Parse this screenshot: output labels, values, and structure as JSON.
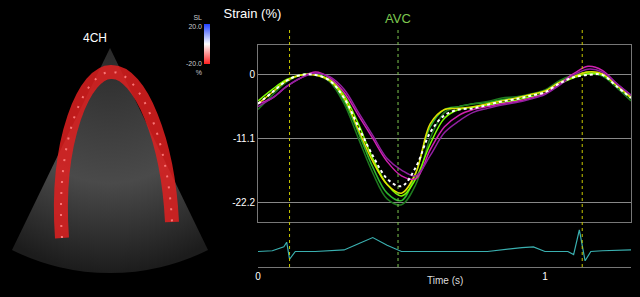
{
  "chart_data": [
    {
      "type": "line",
      "title": "Strain (%)",
      "x": [
        0,
        0.05,
        0.1,
        0.15,
        0.2,
        0.25,
        0.3,
        0.35,
        0.4,
        0.45,
        0.5,
        0.55,
        0.6,
        0.65,
        0.7,
        0.75,
        0.8,
        0.85,
        0.9,
        0.95,
        1.0,
        1.05,
        1.1,
        1.15,
        1.2,
        1.25,
        1.3
      ],
      "xlim": [
        0,
        1.3
      ],
      "ylim": [
        -25.5,
        5.2
      ],
      "yticks": [
        0,
        -11.1,
        -22.2
      ],
      "grid": true,
      "tick_labels": "y",
      "series": [
        {
          "color": "#2eb82e",
          "values": [
            -5,
            -3,
            -1,
            0,
            0.2,
            -1,
            -4.5,
            -10,
            -16,
            -20.5,
            -21.8,
            -17,
            -9,
            -6,
            -5.5,
            -5,
            -4.8,
            -4.3,
            -4,
            -3.5,
            -2.8,
            -1.2,
            -0.2,
            0.5,
            0,
            -2,
            -4
          ]
        },
        {
          "color": "#1f7a1f",
          "values": [
            -6,
            -3.5,
            -1.2,
            0,
            0,
            -1.2,
            -5,
            -11,
            -17,
            -21.5,
            -22.5,
            -19,
            -11,
            -6.5,
            -5.5,
            -5,
            -4.6,
            -4,
            -3.8,
            -3.3,
            -2.6,
            -1,
            0,
            0.3,
            -0.2,
            -2.2,
            -4.5
          ]
        },
        {
          "color": "#7cfc00",
          "values": [
            -4.5,
            -2.5,
            -0.8,
            0,
            0,
            -0.8,
            -3.5,
            -8.5,
            -14.5,
            -19,
            -21,
            -18,
            -12,
            -7.5,
            -6,
            -5.6,
            -5.2,
            -4.8,
            -4.4,
            -3.8,
            -3.2,
            -1.6,
            -0.5,
            0.2,
            0,
            -1.8,
            -3.8
          ]
        },
        {
          "color": "#e0e000",
          "values": [
            -5,
            -3,
            -1,
            0,
            0,
            -1,
            -4,
            -9.5,
            -15,
            -19,
            -20.5,
            -17,
            -8.5,
            -6,
            -5.8,
            -5.5,
            -5,
            -4.5,
            -4,
            -3.4,
            -2.8,
            -1.3,
            -0.3,
            0.5,
            0.2,
            -1.8,
            -4
          ]
        },
        {
          "color": "#d020b0",
          "values": [
            -5,
            -4,
            -2,
            -0.5,
            0.5,
            -0.5,
            -3,
            -7,
            -11,
            -15,
            -17.5,
            -18,
            -13,
            -9,
            -7,
            -6,
            -5.5,
            -5,
            -4.6,
            -4,
            -3.2,
            -1.6,
            0.2,
            1.5,
            0.8,
            -1.5,
            -3.5
          ]
        },
        {
          "color": "#9020a0",
          "values": [
            -5.5,
            -4,
            -2,
            -0.5,
            0.3,
            -0.3,
            -2.5,
            -6.5,
            -10.5,
            -14.5,
            -16.5,
            -17.5,
            -14,
            -10,
            -8,
            -6.5,
            -5.8,
            -5.2,
            -4.8,
            -4.2,
            -3.4,
            -1.8,
            0,
            1,
            0.5,
            -1.5,
            -3.5
          ]
        },
        {
          "color": "#ffffff",
          "line_style": "dot",
          "values": [
            -5,
            -3,
            -1,
            0,
            0,
            -1,
            -4,
            -9,
            -14,
            -18,
            -19.3,
            -16,
            -10,
            -7,
            -6,
            -5.8,
            -5.2,
            -4.6,
            -4.2,
            -3.6,
            -3,
            -1.5,
            -0.4,
            0,
            0,
            -2,
            -4
          ]
        }
      ],
      "events": [
        {
          "x": 0.11,
          "color": "#c8c800"
        },
        {
          "x": 0.488,
          "color": "#7ec850",
          "label": "AVC"
        },
        {
          "x": 1.13,
          "color": "#c8c800"
        }
      ]
    },
    {
      "type": "line",
      "xlabel": "Time (s)",
      "x": [
        0,
        0.05,
        0.09,
        0.1,
        0.11,
        0.13,
        0.2,
        0.3,
        0.35,
        0.4,
        0.45,
        0.5,
        0.6,
        0.8,
        0.92,
        0.96,
        1.0,
        1.08,
        1.1,
        1.12,
        1.14,
        1.16,
        1.2,
        1.3
      ],
      "values": [
        0,
        0.05,
        0.3,
        0.6,
        -0.5,
        0,
        0,
        0.1,
        0.5,
        0.9,
        0.4,
        0,
        0,
        0,
        0.25,
        0.3,
        0,
        0,
        -0.2,
        1.4,
        -0.6,
        0,
        0.05,
        0.1
      ],
      "color": "#3ab0b0",
      "xlim": [
        0,
        1.3
      ],
      "xticks": [
        0,
        1
      ],
      "ylim": [
        -1,
        1.6
      ],
      "tick_labels": "x"
    }
  ],
  "image_panel": {
    "label": "4CH",
    "colorbar": {
      "title": "SL",
      "top": "20.0",
      "bottom": "-20.0",
      "unit": "%"
    }
  }
}
